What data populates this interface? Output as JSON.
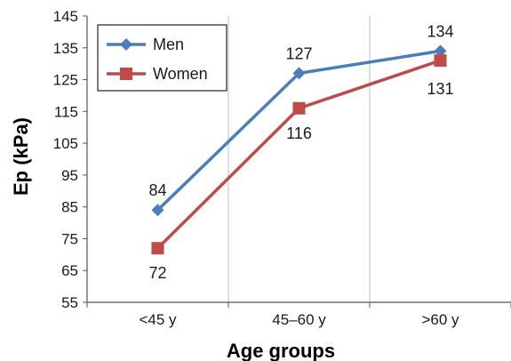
{
  "chart_data": {
    "type": "line",
    "categories": [
      "<45 y",
      "45–60 y",
      ">60 y"
    ],
    "series": [
      {
        "name": "Men",
        "values": [
          84,
          127,
          134
        ],
        "color": "#4a7ebb",
        "marker": "diamond"
      },
      {
        "name": "Women",
        "values": [
          72,
          116,
          131
        ],
        "color": "#be4b48",
        "marker": "square"
      }
    ],
    "data_labels": {
      "Men": [
        "84",
        "127",
        "134"
      ],
      "Women": [
        "72",
        "116",
        "131"
      ]
    },
    "xlabel": "Age groups",
    "ylabel": "Ep (kPa)",
    "ylim": [
      55,
      145
    ],
    "yticks": [
      55,
      65,
      75,
      85,
      95,
      105,
      115,
      125,
      135,
      145
    ],
    "grid": "vertical category separators",
    "legend": "top-left"
  }
}
